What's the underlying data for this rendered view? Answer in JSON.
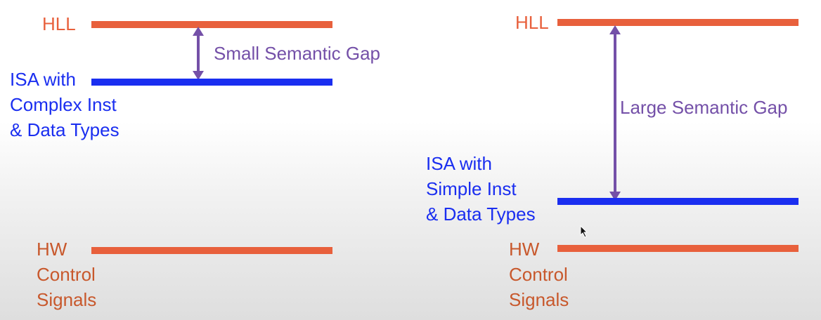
{
  "colors": {
    "hll": "#e8603c",
    "isa": "#1a2ef0",
    "hw": "#e8603c",
    "gap": "#7450a8",
    "hw_text": "#c8582c"
  },
  "left_panel": {
    "hll_label": "HLL",
    "gap_label": "Small Semantic Gap",
    "isa_label": [
      "ISA with",
      "Complex Inst",
      "& Data Types"
    ],
    "hw_label": [
      "HW",
      "Control",
      "Signals"
    ]
  },
  "right_panel": {
    "hll_label": "HLL",
    "gap_label": "Large Semantic Gap",
    "isa_label": [
      "ISA with",
      "Simple Inst",
      "& Data Types"
    ],
    "hw_label": [
      "HW",
      "Control",
      "Signals"
    ]
  },
  "icons": {
    "cursor": "mouse-pointer-icon",
    "gap_arrow": "double-headed-arrow-icon"
  }
}
